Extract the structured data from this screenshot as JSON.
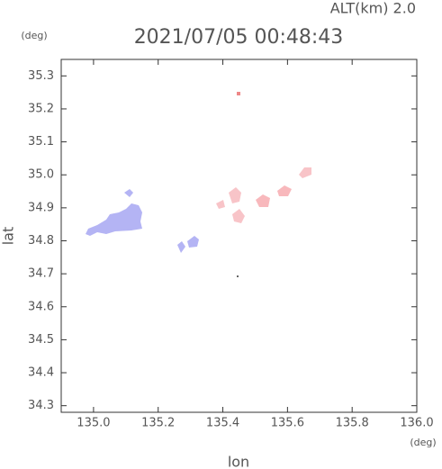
{
  "chart_data": {
    "type": "map",
    "header": "ALT(km) 2.0",
    "title": "2021/07/05 00:48:43",
    "x_label": "lon",
    "y_label": "lat",
    "x_unit": "(deg)",
    "y_unit": "(deg)",
    "xlim": [
      134.9,
      136.0
    ],
    "ylim": [
      34.28,
      35.35
    ],
    "xticks": [
      {
        "value": 135.0,
        "label": "135.0"
      },
      135.2,
      135.4,
      135.6,
      135.8,
      {
        "value": 136.0,
        "label": "136.0"
      }
    ],
    "yticks": [
      35.3,
      35.2,
      35.1,
      {
        "value": 35.0,
        "label": "35.0"
      },
      34.9,
      34.8,
      34.7,
      34.6,
      34.5,
      34.4,
      34.3
    ]
  }
}
